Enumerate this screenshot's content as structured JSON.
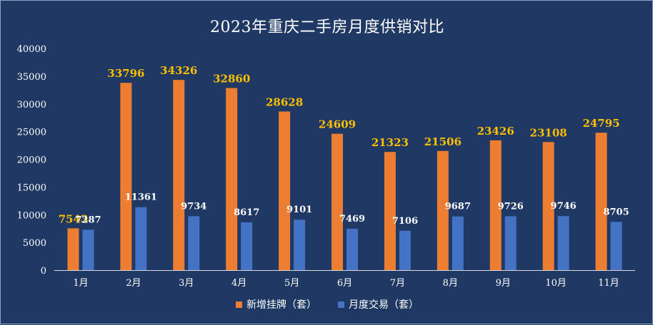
{
  "chart_data": {
    "type": "bar",
    "title": "2023年重庆二手房月度供销对比",
    "categories": [
      "1月",
      "2月",
      "3月",
      "4月",
      "5月",
      "6月",
      "7月",
      "8月",
      "9月",
      "10月",
      "11月"
    ],
    "series": [
      {
        "name": "新增挂牌（套）",
        "color": "#ed7d31",
        "label_color": "#ffc000",
        "values": [
          7543,
          33796,
          34326,
          32860,
          28628,
          24609,
          21323,
          21506,
          23426,
          23108,
          24795
        ]
      },
      {
        "name": "月度交易（套）",
        "color": "#4472c4",
        "label_color": "#ffffff",
        "values": [
          7287,
          11361,
          9734,
          8617,
          9101,
          7469,
          7106,
          9687,
          9726,
          9746,
          8705
        ]
      }
    ],
    "y_ticks": [
      "0",
      "5000",
      "10000",
      "15000",
      "20000",
      "25000",
      "30000",
      "35000",
      "40000"
    ],
    "ylim": [
      0,
      40000
    ],
    "xlabel": "",
    "ylabel": "",
    "grid": false,
    "legend_position": "bottom"
  }
}
